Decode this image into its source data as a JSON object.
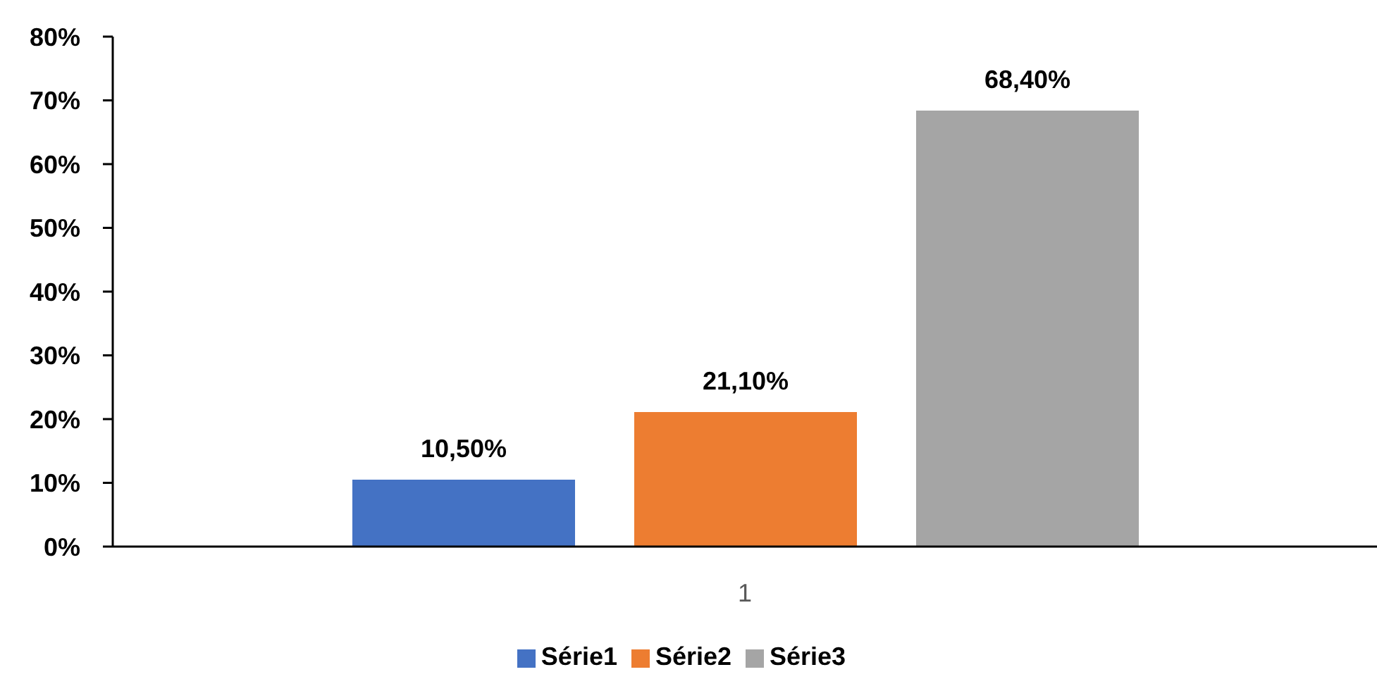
{
  "chart_data": {
    "type": "bar",
    "categories": [
      "1"
    ],
    "series": [
      {
        "name": "Série1",
        "color": "#4472c4",
        "values": [
          10.5
        ],
        "value_labels": [
          "10,50%"
        ]
      },
      {
        "name": "Série2",
        "color": "#ed7d31",
        "values": [
          21.1
        ],
        "value_labels": [
          "21,10%"
        ]
      },
      {
        "name": "Série3",
        "color": "#a5a5a5",
        "values": [
          68.4
        ],
        "value_labels": [
          "68,40%"
        ]
      }
    ],
    "ylim": [
      0,
      80
    ],
    "yticks": [
      {
        "value": 0,
        "label": "0%"
      },
      {
        "value": 10,
        "label": "10%"
      },
      {
        "value": 20,
        "label": "20%"
      },
      {
        "value": 30,
        "label": "30%"
      },
      {
        "value": 40,
        "label": "40%"
      },
      {
        "value": 50,
        "label": "50%"
      },
      {
        "value": 60,
        "label": "60%"
      },
      {
        "value": 70,
        "label": "70%"
      },
      {
        "value": 80,
        "label": "80%"
      }
    ],
    "grid": false,
    "legend": "bottom"
  }
}
